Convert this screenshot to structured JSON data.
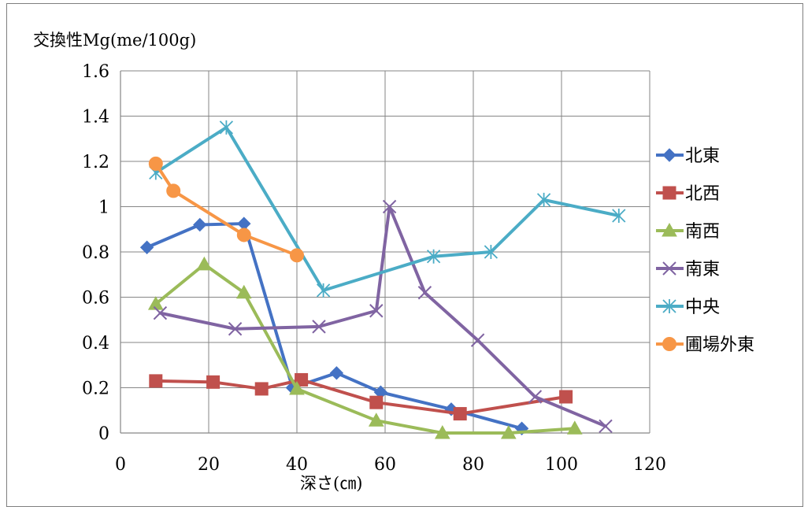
{
  "chart_data": {
    "type": "line",
    "title": "",
    "ylabel": "交換性Mg(me/100g)",
    "xlabel": "深さ(㎝)",
    "xlim": [
      0,
      120
    ],
    "ylim": [
      0,
      1.6
    ],
    "xticks": [
      "0",
      "20",
      "40",
      "60",
      "80",
      "100",
      "120"
    ],
    "yticks": [
      "0",
      "0.2",
      "0.4",
      "0.6",
      "0.8",
      "1",
      "1.2",
      "1.4",
      "1.6"
    ],
    "grid": true,
    "legend_position": "right",
    "series": [
      {
        "name": "北東",
        "color": "#4472C4",
        "marker": "diamond",
        "points": [
          [
            6,
            0.82
          ],
          [
            18,
            0.92
          ],
          [
            28,
            0.925
          ],
          [
            39,
            0.2
          ],
          [
            49,
            0.265
          ],
          [
            59,
            0.18
          ],
          [
            75,
            0.105
          ],
          [
            91,
            0.02
          ]
        ]
      },
      {
        "name": "北西",
        "color": "#C0504D",
        "marker": "square",
        "points": [
          [
            8,
            0.23
          ],
          [
            21,
            0.225
          ],
          [
            32,
            0.195
          ],
          [
            41,
            0.235
          ],
          [
            58,
            0.135
          ],
          [
            77,
            0.085
          ],
          [
            101,
            0.16
          ]
        ]
      },
      {
        "name": "南西",
        "color": "#9BBB59",
        "marker": "triangle",
        "points": [
          [
            8,
            0.57
          ],
          [
            19,
            0.745
          ],
          [
            28,
            0.62
          ],
          [
            40,
            0.195
          ],
          [
            58,
            0.055
          ],
          [
            73,
            0.0
          ],
          [
            88,
            0.0
          ],
          [
            103,
            0.02
          ]
        ]
      },
      {
        "name": "南東",
        "color": "#8064A2",
        "marker": "x",
        "points": [
          [
            9,
            0.53
          ],
          [
            26,
            0.46
          ],
          [
            45,
            0.47
          ],
          [
            58,
            0.54
          ],
          [
            61,
            1.0
          ],
          [
            69,
            0.62
          ],
          [
            81,
            0.41
          ],
          [
            94,
            0.16
          ],
          [
            110,
            0.03
          ]
        ]
      },
      {
        "name": "中央",
        "color": "#4BACC6",
        "marker": "star",
        "points": [
          [
            8,
            1.15
          ],
          [
            24,
            1.35
          ],
          [
            46,
            0.63
          ],
          [
            71,
            0.78
          ],
          [
            84,
            0.8
          ],
          [
            96,
            1.03
          ],
          [
            113,
            0.96
          ]
        ]
      },
      {
        "name": "圃場外東",
        "color": "#F79646",
        "marker": "circle",
        "points": [
          [
            8,
            1.19
          ],
          [
            12,
            1.07
          ],
          [
            28,
            0.875
          ],
          [
            40,
            0.785
          ]
        ]
      }
    ]
  }
}
